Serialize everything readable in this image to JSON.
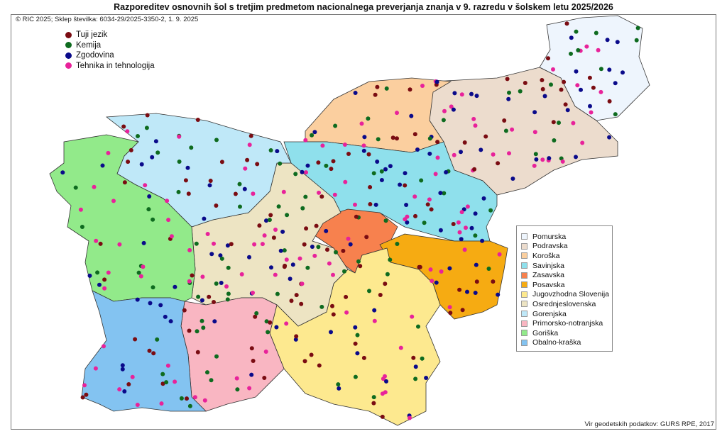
{
  "title": "Razporeditev osnovnih šol s tretjim predmetom nacionalnega preverjanja znanja v 9. razredu v šolskem letu 2025/2026",
  "copyright": "© RIC 2025; Sklep številka: 6034-29/2025-3350-2, 1. 9. 2025",
  "source": "Vir geodetskih podatkov: GURS RPE, 2017",
  "subjects": [
    {
      "label": "Tuji jezik",
      "color": "#7a0c12"
    },
    {
      "label": "Kemija",
      "color": "#0e6b1f"
    },
    {
      "label": "Zgodovina",
      "color": "#0a0a8a"
    },
    {
      "label": "Tehnika in tehnologija",
      "color": "#e8229a"
    }
  ],
  "regions": [
    {
      "label": "Pomurska",
      "color": "#eef5fd"
    },
    {
      "label": "Podravska",
      "color": "#ecdccd"
    },
    {
      "label": "Koroška",
      "color": "#fbcf9f"
    },
    {
      "label": "Savinjska",
      "color": "#8fe0ec"
    },
    {
      "label": "Zasavska",
      "color": "#f7814e"
    },
    {
      "label": "Posavska",
      "color": "#f6ab12"
    },
    {
      "label": "Jugovzhodna Slovenija",
      "color": "#fde98f"
    },
    {
      "label": "Osrednjeslovenska",
      "color": "#ede4c3"
    },
    {
      "label": "Gorenjska",
      "color": "#bfe8f8"
    },
    {
      "label": "Primorsko-notranjska",
      "color": "#f9b6c2"
    },
    {
      "label": "Goriška",
      "color": "#92ea8a"
    },
    {
      "label": "Obalno-kraška",
      "color": "#83c3f1"
    }
  ]
}
